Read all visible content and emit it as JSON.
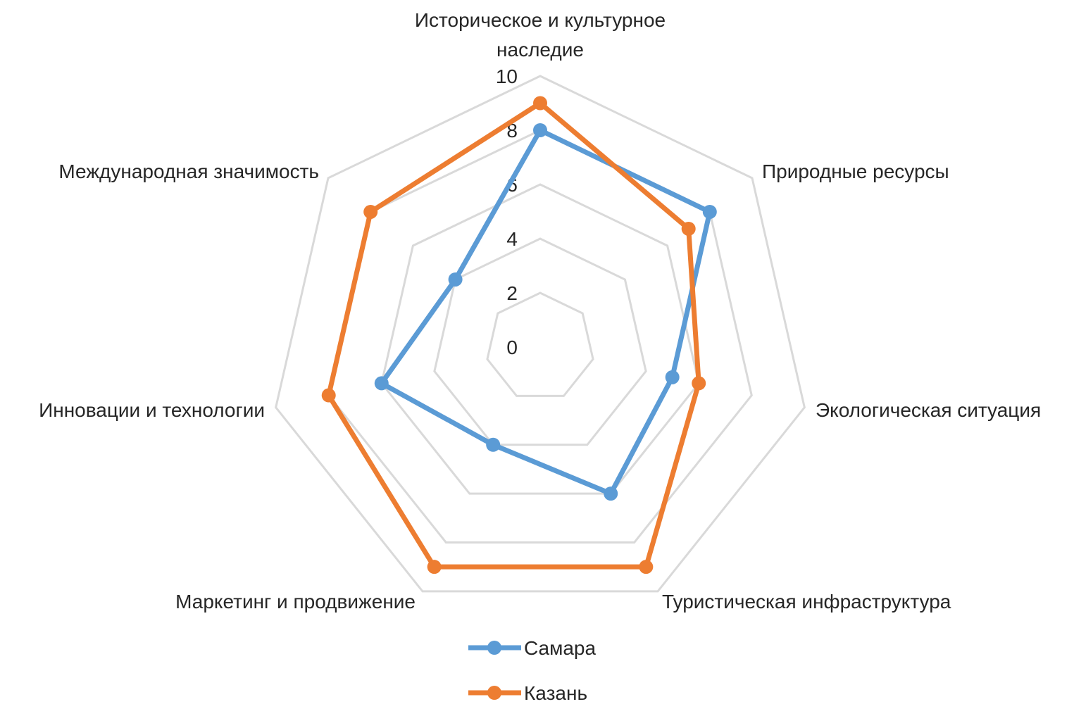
{
  "chart_data": {
    "type": "radar",
    "title": "",
    "categories": [
      "Историческое и культурное наследие",
      "Природные ресурсы",
      "Экологическая ситуация",
      "Туристическая инфраструктура",
      "Маркетинг и продвижение",
      "Инновации и технологии",
      "Международная значимость"
    ],
    "series": [
      {
        "name": "Самара",
        "color": "#5B9BD5",
        "values": [
          8,
          8,
          5,
          6,
          4,
          6,
          4
        ]
      },
      {
        "name": "Казань",
        "color": "#ED7D31",
        "values": [
          9,
          7,
          6,
          9,
          9,
          8,
          8
        ]
      }
    ],
    "rlim": [
      0,
      10
    ],
    "ticks": [
      "0",
      "2",
      "4",
      "6",
      "8",
      "10"
    ],
    "grid": true,
    "grid_color": "#D9D9D9",
    "legend_position": "bottom"
  }
}
